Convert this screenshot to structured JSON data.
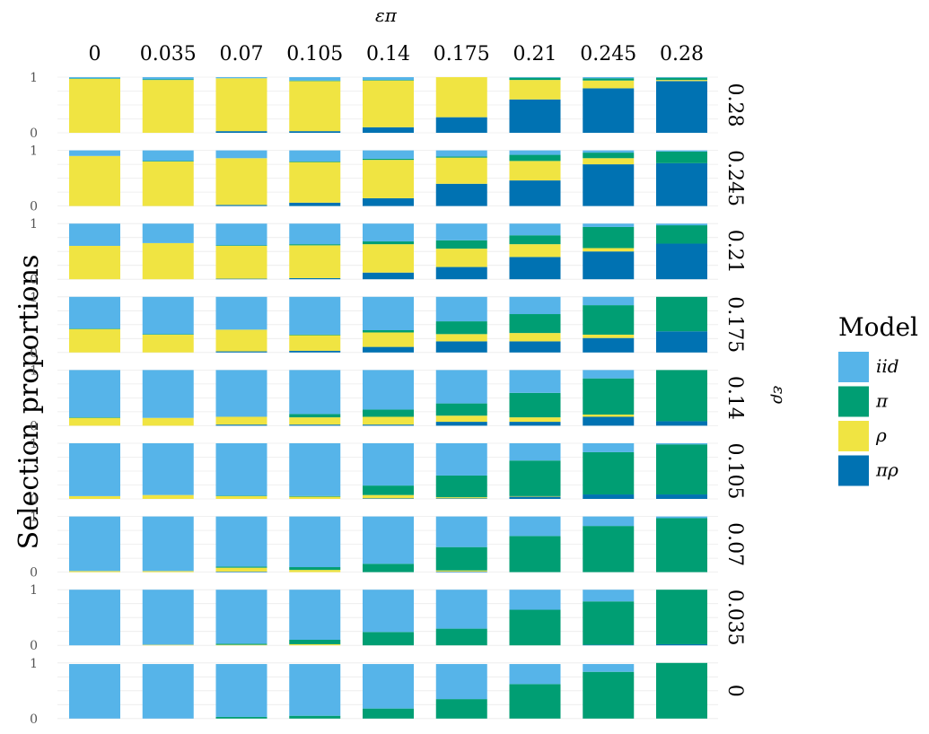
{
  "chart_data": {
    "type": "bar",
    "chart_kind": "faceted stacked bar grid",
    "col_header_title": "επ",
    "row_header_title": "ερ",
    "ylabel": "Selection proportions",
    "ylim": [
      0,
      1
    ],
    "y_ticks": [
      "0",
      "1"
    ],
    "col_values": [
      "0",
      "0.035",
      "0.07",
      "0.105",
      "0.14",
      "0.175",
      "0.21",
      "0.245",
      "0.28"
    ],
    "row_values": [
      "0.28",
      "0.245",
      "0.21",
      "0.175",
      "0.14",
      "0.105",
      "0.07",
      "0.035",
      "0"
    ],
    "stack_order_bottom_to_top": [
      "πρ",
      "ρ",
      "π",
      "iid"
    ],
    "grid": true,
    "legend": {
      "title": "Model",
      "position": "right",
      "entries": [
        {
          "label": "iid",
          "color": "#56B4E9"
        },
        {
          "label": "π",
          "color": "#009E73"
        },
        {
          "label": "ρ",
          "color": "#F0E442"
        },
        {
          "label": "πρ",
          "color": "#0072B2"
        }
      ]
    },
    "series_colors": {
      "iid": "#56B4E9",
      "pi": "#009E73",
      "rho": "#F0E442",
      "pirho": "#0072B2"
    },
    "panels": [
      [
        {
          "pirho": 0.0,
          "rho": 0.97,
          "pi": 0.01,
          "iid": 0.02
        },
        {
          "pirho": 0.0,
          "rho": 0.95,
          "pi": 0.01,
          "iid": 0.04
        },
        {
          "pirho": 0.03,
          "rho": 0.95,
          "pi": 0.0,
          "iid": 0.02
        },
        {
          "pirho": 0.03,
          "rho": 0.9,
          "pi": 0.01,
          "iid": 0.06
        },
        {
          "pirho": 0.1,
          "rho": 0.84,
          "pi": 0.01,
          "iid": 0.05
        },
        {
          "pirho": 0.28,
          "rho": 0.72,
          "pi": 0.0,
          "iid": 0.0
        },
        {
          "pirho": 0.6,
          "rho": 0.35,
          "pi": 0.04,
          "iid": 0.01
        },
        {
          "pirho": 0.8,
          "rho": 0.14,
          "pi": 0.04,
          "iid": 0.02
        },
        {
          "pirho": 0.93,
          "rho": 0.02,
          "pi": 0.04,
          "iid": 0.01
        }
      ],
      [
        {
          "pirho": 0.0,
          "rho": 0.9,
          "pi": 0.0,
          "iid": 0.1
        },
        {
          "pirho": 0.0,
          "rho": 0.8,
          "pi": 0.01,
          "iid": 0.19
        },
        {
          "pirho": 0.02,
          "rho": 0.84,
          "pi": 0.0,
          "iid": 0.14
        },
        {
          "pirho": 0.06,
          "rho": 0.73,
          "pi": 0.01,
          "iid": 0.2
        },
        {
          "pirho": 0.14,
          "rho": 0.69,
          "pi": 0.02,
          "iid": 0.15
        },
        {
          "pirho": 0.4,
          "rho": 0.47,
          "pi": 0.02,
          "iid": 0.11
        },
        {
          "pirho": 0.46,
          "rho": 0.35,
          "pi": 0.11,
          "iid": 0.08
        },
        {
          "pirho": 0.75,
          "rho": 0.11,
          "pi": 0.1,
          "iid": 0.04
        },
        {
          "pirho": 0.77,
          "rho": 0.0,
          "pi": 0.21,
          "iid": 0.02
        }
      ],
      [
        {
          "pirho": 0.0,
          "rho": 0.6,
          "pi": 0.0,
          "iid": 0.4
        },
        {
          "pirho": 0.0,
          "rho": 0.65,
          "pi": 0.0,
          "iid": 0.35
        },
        {
          "pirho": 0.01,
          "rho": 0.59,
          "pi": 0.01,
          "iid": 0.39
        },
        {
          "pirho": 0.02,
          "rho": 0.59,
          "pi": 0.02,
          "iid": 0.37
        },
        {
          "pirho": 0.12,
          "rho": 0.51,
          "pi": 0.05,
          "iid": 0.32
        },
        {
          "pirho": 0.22,
          "rho": 0.33,
          "pi": 0.15,
          "iid": 0.3
        },
        {
          "pirho": 0.4,
          "rho": 0.23,
          "pi": 0.16,
          "iid": 0.21
        },
        {
          "pirho": 0.5,
          "rho": 0.06,
          "pi": 0.38,
          "iid": 0.06
        },
        {
          "pirho": 0.64,
          "rho": 0.0,
          "pi": 0.33,
          "iid": 0.03
        }
      ],
      [
        {
          "pirho": 0.0,
          "rho": 0.42,
          "pi": 0.01,
          "iid": 0.57
        },
        {
          "pirho": 0.0,
          "rho": 0.32,
          "pi": 0.01,
          "iid": 0.67
        },
        {
          "pirho": 0.02,
          "rho": 0.39,
          "pi": 0.0,
          "iid": 0.59
        },
        {
          "pirho": 0.03,
          "rho": 0.28,
          "pi": 0.01,
          "iid": 0.68
        },
        {
          "pirho": 0.1,
          "rho": 0.26,
          "pi": 0.04,
          "iid": 0.6
        },
        {
          "pirho": 0.2,
          "rho": 0.13,
          "pi": 0.23,
          "iid": 0.44
        },
        {
          "pirho": 0.2,
          "rho": 0.15,
          "pi": 0.34,
          "iid": 0.31
        },
        {
          "pirho": 0.26,
          "rho": 0.06,
          "pi": 0.53,
          "iid": 0.15
        },
        {
          "pirho": 0.38,
          "rho": 0.0,
          "pi": 0.62,
          "iid": 0.0
        }
      ],
      [
        {
          "pirho": 0.0,
          "rho": 0.14,
          "pi": 0.01,
          "iid": 0.85
        },
        {
          "pirho": 0.0,
          "rho": 0.14,
          "pi": 0.0,
          "iid": 0.86
        },
        {
          "pirho": 0.02,
          "rho": 0.14,
          "pi": 0.0,
          "iid": 0.84
        },
        {
          "pirho": 0.02,
          "rho": 0.13,
          "pi": 0.06,
          "iid": 0.79
        },
        {
          "pirho": 0.02,
          "rho": 0.14,
          "pi": 0.13,
          "iid": 0.71
        },
        {
          "pirho": 0.07,
          "rho": 0.11,
          "pi": 0.22,
          "iid": 0.6
        },
        {
          "pirho": 0.07,
          "rho": 0.08,
          "pi": 0.44,
          "iid": 0.41
        },
        {
          "pirho": 0.16,
          "rho": 0.04,
          "pi": 0.65,
          "iid": 0.15
        },
        {
          "pirho": 0.08,
          "rho": 0.0,
          "pi": 0.92,
          "iid": 0.0
        }
      ],
      [
        {
          "pirho": 0.0,
          "rho": 0.05,
          "pi": 0.0,
          "iid": 0.95
        },
        {
          "pirho": 0.0,
          "rho": 0.07,
          "pi": 0.0,
          "iid": 0.93
        },
        {
          "pirho": 0.0,
          "rho": 0.05,
          "pi": 0.01,
          "iid": 0.94
        },
        {
          "pirho": 0.0,
          "rho": 0.04,
          "pi": 0.01,
          "iid": 0.95
        },
        {
          "pirho": 0.01,
          "rho": 0.06,
          "pi": 0.17,
          "iid": 0.76
        },
        {
          "pirho": 0.01,
          "rho": 0.02,
          "pi": 0.39,
          "iid": 0.58
        },
        {
          "pirho": 0.04,
          "rho": 0.01,
          "pi": 0.64,
          "iid": 0.31
        },
        {
          "pirho": 0.08,
          "rho": 0.0,
          "pi": 0.76,
          "iid": 0.16
        },
        {
          "pirho": 0.08,
          "rho": 0.0,
          "pi": 0.9,
          "iid": 0.02
        }
      ],
      [
        {
          "pirho": 0.0,
          "rho": 0.02,
          "pi": 0.0,
          "iid": 0.98
        },
        {
          "pirho": 0.0,
          "rho": 0.02,
          "pi": 0.0,
          "iid": 0.98
        },
        {
          "pirho": 0.01,
          "rho": 0.07,
          "pi": 0.02,
          "iid": 0.9
        },
        {
          "pirho": 0.0,
          "rho": 0.04,
          "pi": 0.05,
          "iid": 0.91
        },
        {
          "pirho": 0.0,
          "rho": 0.0,
          "pi": 0.15,
          "iid": 0.85
        },
        {
          "pirho": 0.01,
          "rho": 0.02,
          "pi": 0.42,
          "iid": 0.55
        },
        {
          "pirho": 0.0,
          "rho": 0.0,
          "pi": 0.65,
          "iid": 0.35
        },
        {
          "pirho": 0.0,
          "rho": 0.0,
          "pi": 0.83,
          "iid": 0.17
        },
        {
          "pirho": 0.0,
          "rho": 0.0,
          "pi": 0.97,
          "iid": 0.03
        }
      ],
      [
        {
          "pirho": 0.0,
          "rho": 0.0,
          "pi": 0.0,
          "iid": 1.0
        },
        {
          "pirho": 0.0,
          "rho": 0.01,
          "pi": 0.0,
          "iid": 0.99
        },
        {
          "pirho": 0.0,
          "rho": 0.01,
          "pi": 0.02,
          "iid": 0.97
        },
        {
          "pirho": 0.0,
          "rho": 0.02,
          "pi": 0.08,
          "iid": 0.9
        },
        {
          "pirho": 0.0,
          "rho": 0.0,
          "pi": 0.24,
          "iid": 0.76
        },
        {
          "pirho": 0.0,
          "rho": 0.0,
          "pi": 0.3,
          "iid": 0.7
        },
        {
          "pirho": 0.0,
          "rho": 0.0,
          "pi": 0.64,
          "iid": 0.36
        },
        {
          "pirho": 0.01,
          "rho": 0.0,
          "pi": 0.78,
          "iid": 0.21
        },
        {
          "pirho": 0.02,
          "rho": 0.0,
          "pi": 0.98,
          "iid": 0.0
        }
      ],
      [
        {
          "pirho": 0.0,
          "rho": 0.0,
          "pi": 0.0,
          "iid": 0.98
        },
        {
          "pirho": 0.0,
          "rho": 0.0,
          "pi": 0.0,
          "iid": 0.98
        },
        {
          "pirho": 0.0,
          "rho": 0.0,
          "pi": 0.03,
          "iid": 0.95
        },
        {
          "pirho": 0.0,
          "rho": 0.0,
          "pi": 0.05,
          "iid": 0.93
        },
        {
          "pirho": 0.0,
          "rho": 0.0,
          "pi": 0.18,
          "iid": 0.8
        },
        {
          "pirho": 0.0,
          "rho": 0.0,
          "pi": 0.35,
          "iid": 0.63
        },
        {
          "pirho": 0.0,
          "rho": 0.0,
          "pi": 0.62,
          "iid": 0.36
        },
        {
          "pirho": 0.0,
          "rho": 0.0,
          "pi": 0.84,
          "iid": 0.14
        },
        {
          "pirho": 0.0,
          "rho": 0.0,
          "pi": 1.0,
          "iid": 0.0
        }
      ]
    ]
  }
}
